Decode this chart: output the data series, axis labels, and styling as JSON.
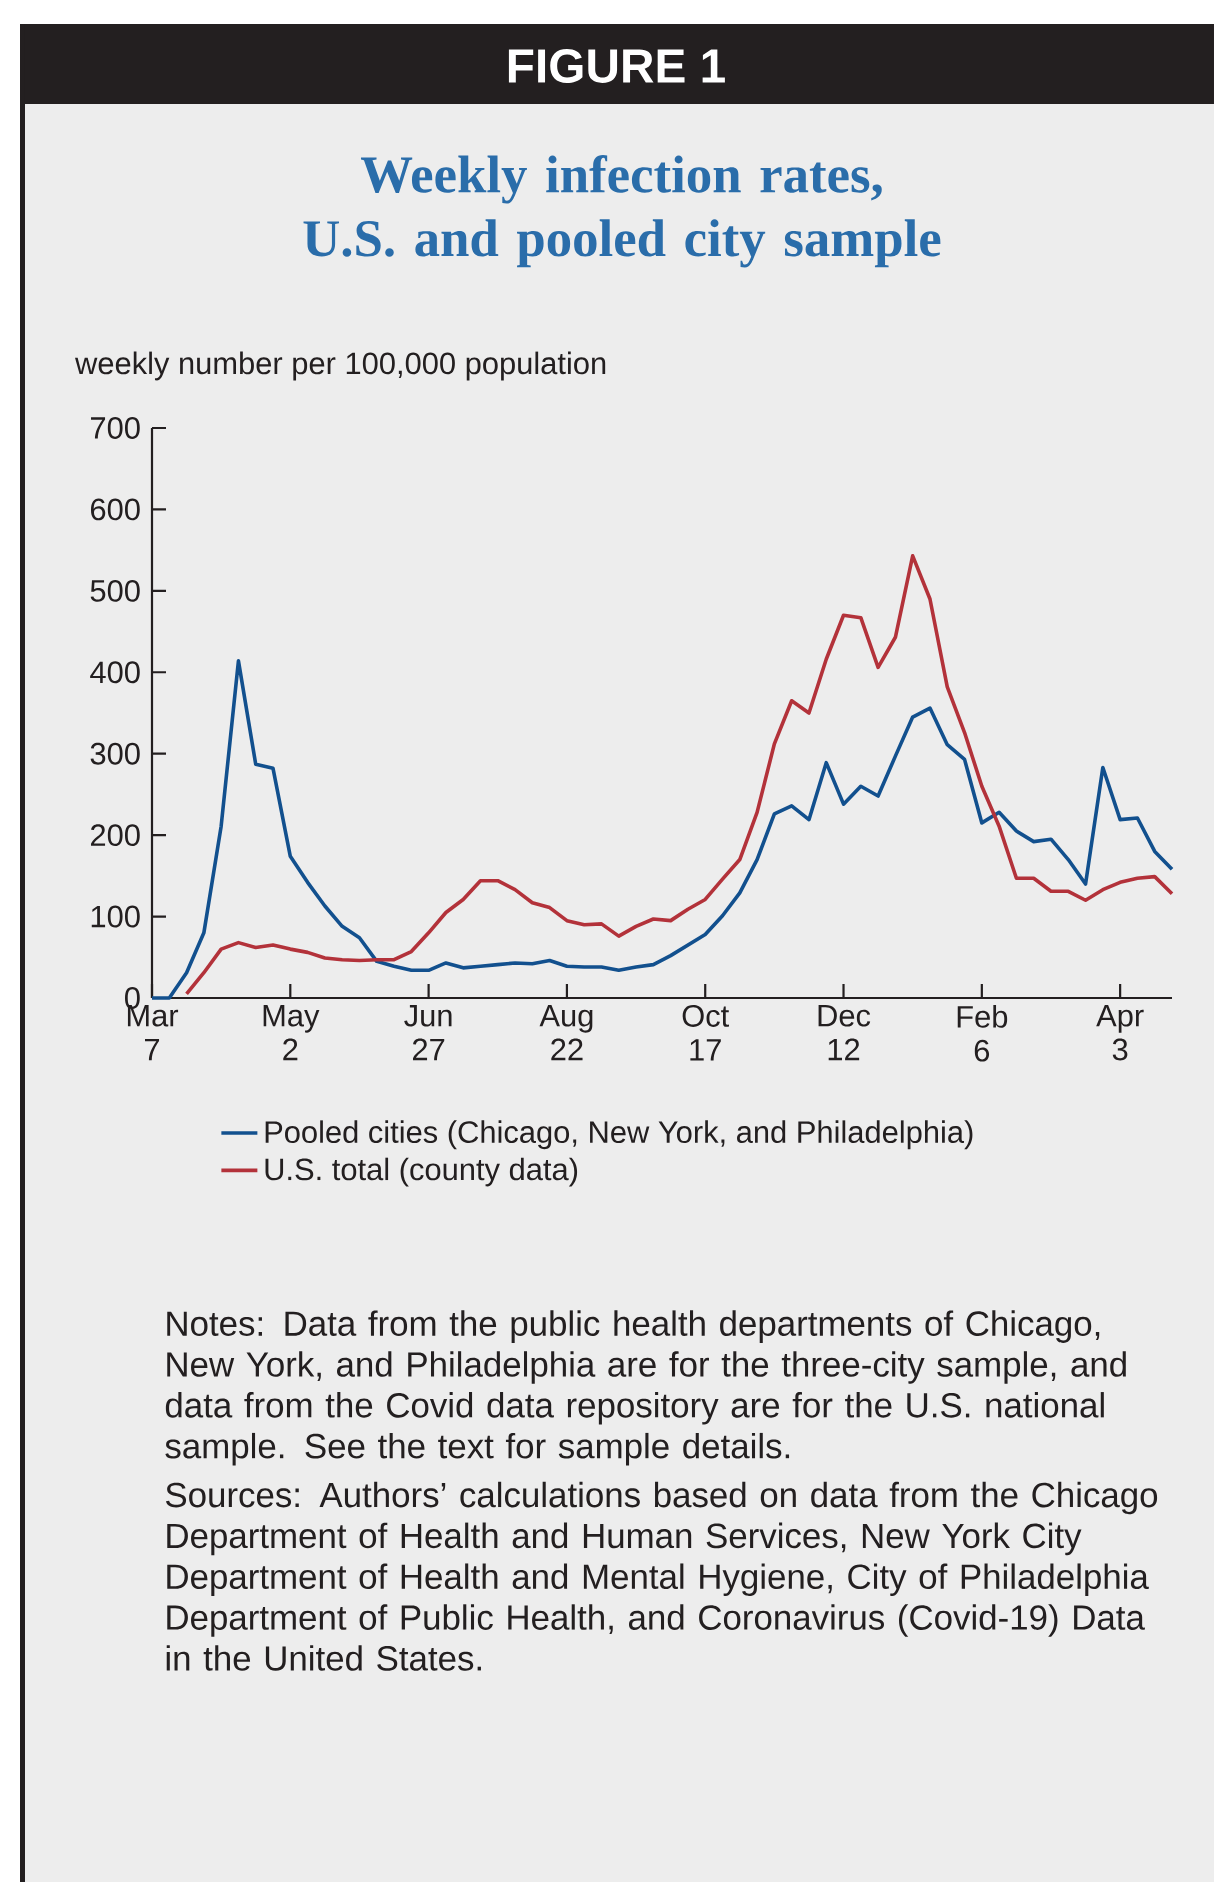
{
  "chart_data": {
    "type": "line",
    "title": "Weekly infection rates, U.S. and pooled city sample",
    "ylabel": "weekly number per 100,000 population",
    "categories": [
      "Mar 7",
      null,
      null,
      null,
      null,
      null,
      null,
      null,
      "May 2",
      null,
      null,
      null,
      null,
      null,
      null,
      null,
      "Jun 27",
      null,
      null,
      null,
      null,
      null,
      null,
      null,
      "Aug 22",
      null,
      null,
      null,
      null,
      null,
      null,
      null,
      "Oct 17",
      null,
      null,
      null,
      null,
      null,
      null,
      null,
      "Dec 12",
      null,
      null,
      null,
      null,
      null,
      null,
      null,
      "Feb 6",
      null,
      null,
      null,
      null,
      null,
      null,
      null,
      "Apr 3",
      null,
      null,
      null
    ],
    "series": [
      {
        "name": "Pooled cities (Chicago, New York, and Philadelphia)",
        "color": "#12508e",
        "values": [
          0,
          0,
          31,
          80,
          211,
          414,
          287,
          282,
          174,
          142,
          113,
          88,
          74,
          45,
          39,
          34,
          34,
          43,
          37,
          39,
          41,
          43,
          42,
          46,
          39,
          38,
          38,
          34,
          38,
          41,
          52,
          65,
          78,
          101,
          129,
          170,
          226,
          236,
          219,
          289,
          238,
          260,
          248,
          297,
          345,
          356,
          311,
          293,
          215,
          228,
          205,
          192,
          195,
          170,
          140,
          283,
          219,
          221,
          180,
          158
        ]
      },
      {
        "name": "U.S. total (county data)",
        "color": "#b3323a",
        "values": [
          null,
          null,
          5,
          31,
          60,
          68,
          62,
          65,
          60,
          56,
          49,
          47,
          46,
          47,
          47,
          57,
          80,
          105,
          121,
          144,
          144,
          133,
          117,
          111,
          95,
          90,
          91,
          76,
          88,
          97,
          95,
          109,
          121,
          146,
          170,
          228,
          312,
          365,
          350,
          416,
          470,
          467,
          406,
          443,
          543,
          490,
          382,
          326,
          260,
          211,
          147,
          147,
          131,
          131,
          120,
          133,
          142,
          147,
          149,
          128
        ]
      }
    ],
    "ylim": [
      0,
      700
    ],
    "yticks": [
      0,
      100,
      200,
      300,
      400,
      500,
      600,
      700
    ],
    "legend": "bottom",
    "annotations": [
      "FIGURE 1",
      "Notes: Data from the public health departments of Chicago, New York, and Philadelphia are for the three-city sample, and data from the Covid data repository are for the U.S. national sample. See the text for sample details.",
      "Sources: Authors’ calculations based on data from the Chicago Department of Health and Human Services, New York City Department of Health and Mental Hygiene, City of Philadelphia Department of Public Health, and Coronavirus (Covid-19) Data in the United States."
    ]
  }
}
